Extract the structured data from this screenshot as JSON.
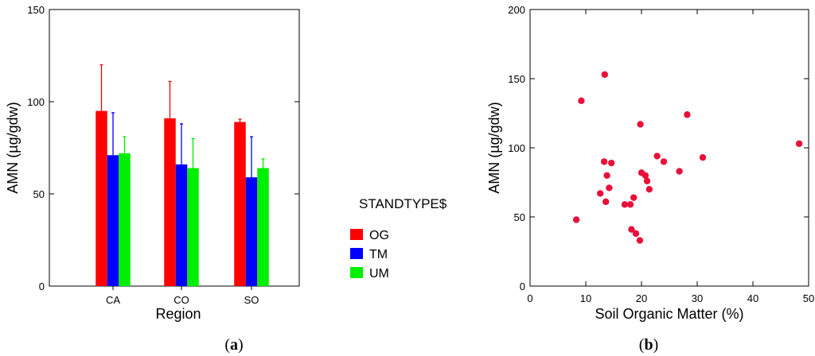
{
  "chart_data": [
    {
      "type": "bar",
      "panel_label": "(a)",
      "panel_letter": "a",
      "categories": [
        "CA",
        "CO",
        "SO"
      ],
      "series": [
        {
          "name": "OG",
          "color": "#ff0000",
          "values": [
            95,
            91,
            89
          ],
          "errors": [
            25,
            20,
            1.5
          ]
        },
        {
          "name": "TM",
          "color": "#0000ff",
          "values": [
            71,
            66,
            59
          ],
          "errors": [
            23,
            22,
            22
          ]
        },
        {
          "name": "UM",
          "color": "#00ee00",
          "values": [
            72,
            64,
            64
          ],
          "errors": [
            9,
            16,
            5
          ]
        }
      ],
      "xlabel": "Region",
      "ylabel": "AMN (µg/gdw)",
      "ylim": [
        0,
        150
      ],
      "yticks": [
        0,
        50,
        100,
        150
      ],
      "legend_title": "STANDTYPE$",
      "legend_placement": "right",
      "grid": false,
      "error_bars": "upper"
    },
    {
      "type": "scatter",
      "panel_label": "(b)",
      "panel_letter": "b",
      "xlabel": "Soil Organic Matter (%)",
      "ylabel": "AMN (µg/gdw)",
      "xlim": [
        0,
        50
      ],
      "ylim": [
        0,
        200
      ],
      "xticks": [
        0,
        10,
        20,
        30,
        40,
        50
      ],
      "yticks": [
        0,
        50,
        100,
        150,
        200
      ],
      "marker_color": "#e8103a",
      "grid": false,
      "points": [
        {
          "x": 8.3,
          "y": 48
        },
        {
          "x": 9.2,
          "y": 134
        },
        {
          "x": 12.6,
          "y": 67
        },
        {
          "x": 13.4,
          "y": 153
        },
        {
          "x": 13.3,
          "y": 90
        },
        {
          "x": 13.8,
          "y": 80
        },
        {
          "x": 14.2,
          "y": 71
        },
        {
          "x": 14.6,
          "y": 89
        },
        {
          "x": 13.6,
          "y": 61
        },
        {
          "x": 17.0,
          "y": 59
        },
        {
          "x": 18.0,
          "y": 59
        },
        {
          "x": 18.2,
          "y": 41
        },
        {
          "x": 18.6,
          "y": 64
        },
        {
          "x": 19.0,
          "y": 38
        },
        {
          "x": 19.7,
          "y": 33
        },
        {
          "x": 19.8,
          "y": 117
        },
        {
          "x": 20.0,
          "y": 82
        },
        {
          "x": 20.7,
          "y": 80
        },
        {
          "x": 21.0,
          "y": 76
        },
        {
          "x": 21.4,
          "y": 70
        },
        {
          "x": 22.8,
          "y": 94
        },
        {
          "x": 24.0,
          "y": 90
        },
        {
          "x": 26.8,
          "y": 83
        },
        {
          "x": 28.2,
          "y": 124
        },
        {
          "x": 31.0,
          "y": 93
        },
        {
          "x": 48.3,
          "y": 103
        }
      ]
    }
  ]
}
